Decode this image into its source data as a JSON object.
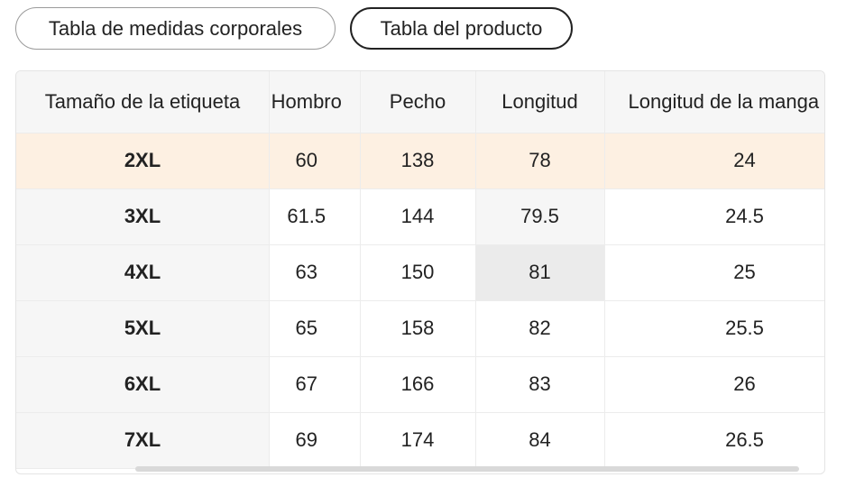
{
  "tabs": [
    {
      "label": "Tabla de medidas corporales",
      "active": false
    },
    {
      "label": "Tabla del producto",
      "active": true
    }
  ],
  "table": {
    "headers": [
      "Tamaño de la etiqueta",
      "Hombro",
      "Pecho",
      "Longitud",
      "Longitud de la manga"
    ],
    "rows": [
      {
        "size": "2XL",
        "hombro": "60",
        "pecho": "138",
        "longitud": "78",
        "manga": "24"
      },
      {
        "size": "3XL",
        "hombro": "61.5",
        "pecho": "144",
        "longitud": "79.5",
        "manga": "24.5"
      },
      {
        "size": "4XL",
        "hombro": "63",
        "pecho": "150",
        "longitud": "81",
        "manga": "25"
      },
      {
        "size": "5XL",
        "hombro": "65",
        "pecho": "158",
        "longitud": "82",
        "manga": "25.5"
      },
      {
        "size": "6XL",
        "hombro": "67",
        "pecho": "166",
        "longitud": "83",
        "manga": "26"
      },
      {
        "size": "7XL",
        "hombro": "69",
        "pecho": "174",
        "longitud": "84",
        "manga": "26.5"
      }
    ],
    "highlight_row_color": "#fdf0e2"
  }
}
